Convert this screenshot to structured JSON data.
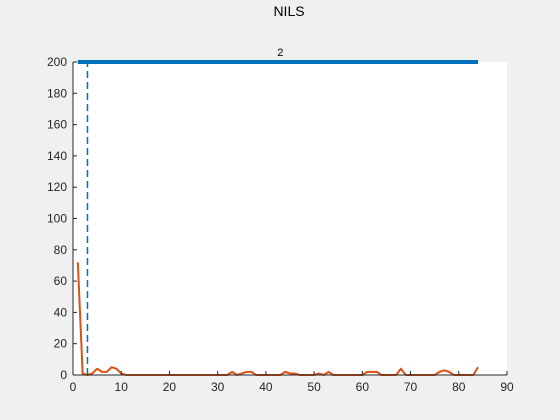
{
  "chart_data": {
    "type": "line",
    "title": "NILS",
    "xlabel": "",
    "ylabel": "",
    "xlim": [
      0,
      90
    ],
    "ylim": [
      0,
      200
    ],
    "xticks": [
      0,
      10,
      20,
      30,
      40,
      50,
      60,
      70,
      80,
      90
    ],
    "yticks": [
      0,
      20,
      40,
      60,
      80,
      100,
      120,
      140,
      160,
      180,
      200
    ],
    "grid": false,
    "annotation": {
      "text": "2",
      "x": 43
    },
    "series": [
      {
        "color": "#0072bd",
        "style": "solid-thick",
        "x": [
          1,
          84
        ],
        "y": [
          200,
          200
        ]
      },
      {
        "color": "#0072bd",
        "style": "dashed",
        "x": [
          3,
          3
        ],
        "y": [
          0,
          200
        ]
      },
      {
        "color": "#d95319",
        "style": "solid",
        "x": [
          1,
          2,
          3,
          4,
          5,
          6,
          7,
          8,
          9,
          10,
          11,
          12,
          14,
          16,
          18,
          20,
          22,
          24,
          26,
          28,
          30,
          31,
          32,
          33,
          34,
          35,
          36,
          37,
          38,
          39,
          40,
          41,
          42,
          43,
          44,
          45,
          46,
          47,
          48,
          49,
          50,
          51,
          52,
          53,
          54,
          55,
          56,
          57,
          58,
          59,
          60,
          61,
          62,
          63,
          64,
          65,
          66,
          67,
          68,
          69,
          70,
          71,
          72,
          73,
          74,
          75,
          76,
          77,
          78,
          79,
          80,
          81,
          82,
          83,
          84
        ],
        "y": [
          72,
          1,
          0,
          1,
          4,
          2,
          2,
          5,
          4,
          1,
          0,
          0,
          0,
          0,
          0,
          0,
          0,
          0,
          0,
          0,
          0,
          0,
          0,
          2,
          0,
          1,
          2,
          2,
          0,
          0,
          0,
          0,
          0,
          0,
          2,
          1,
          1,
          0,
          0,
          0,
          0,
          1,
          0,
          2,
          0,
          0,
          0,
          0,
          0,
          0,
          0,
          2,
          2,
          2,
          0,
          0,
          0,
          0,
          4,
          0,
          0,
          0,
          0,
          0,
          0,
          0,
          2,
          3,
          2,
          0,
          0,
          0,
          0,
          0,
          5
        ]
      }
    ]
  }
}
